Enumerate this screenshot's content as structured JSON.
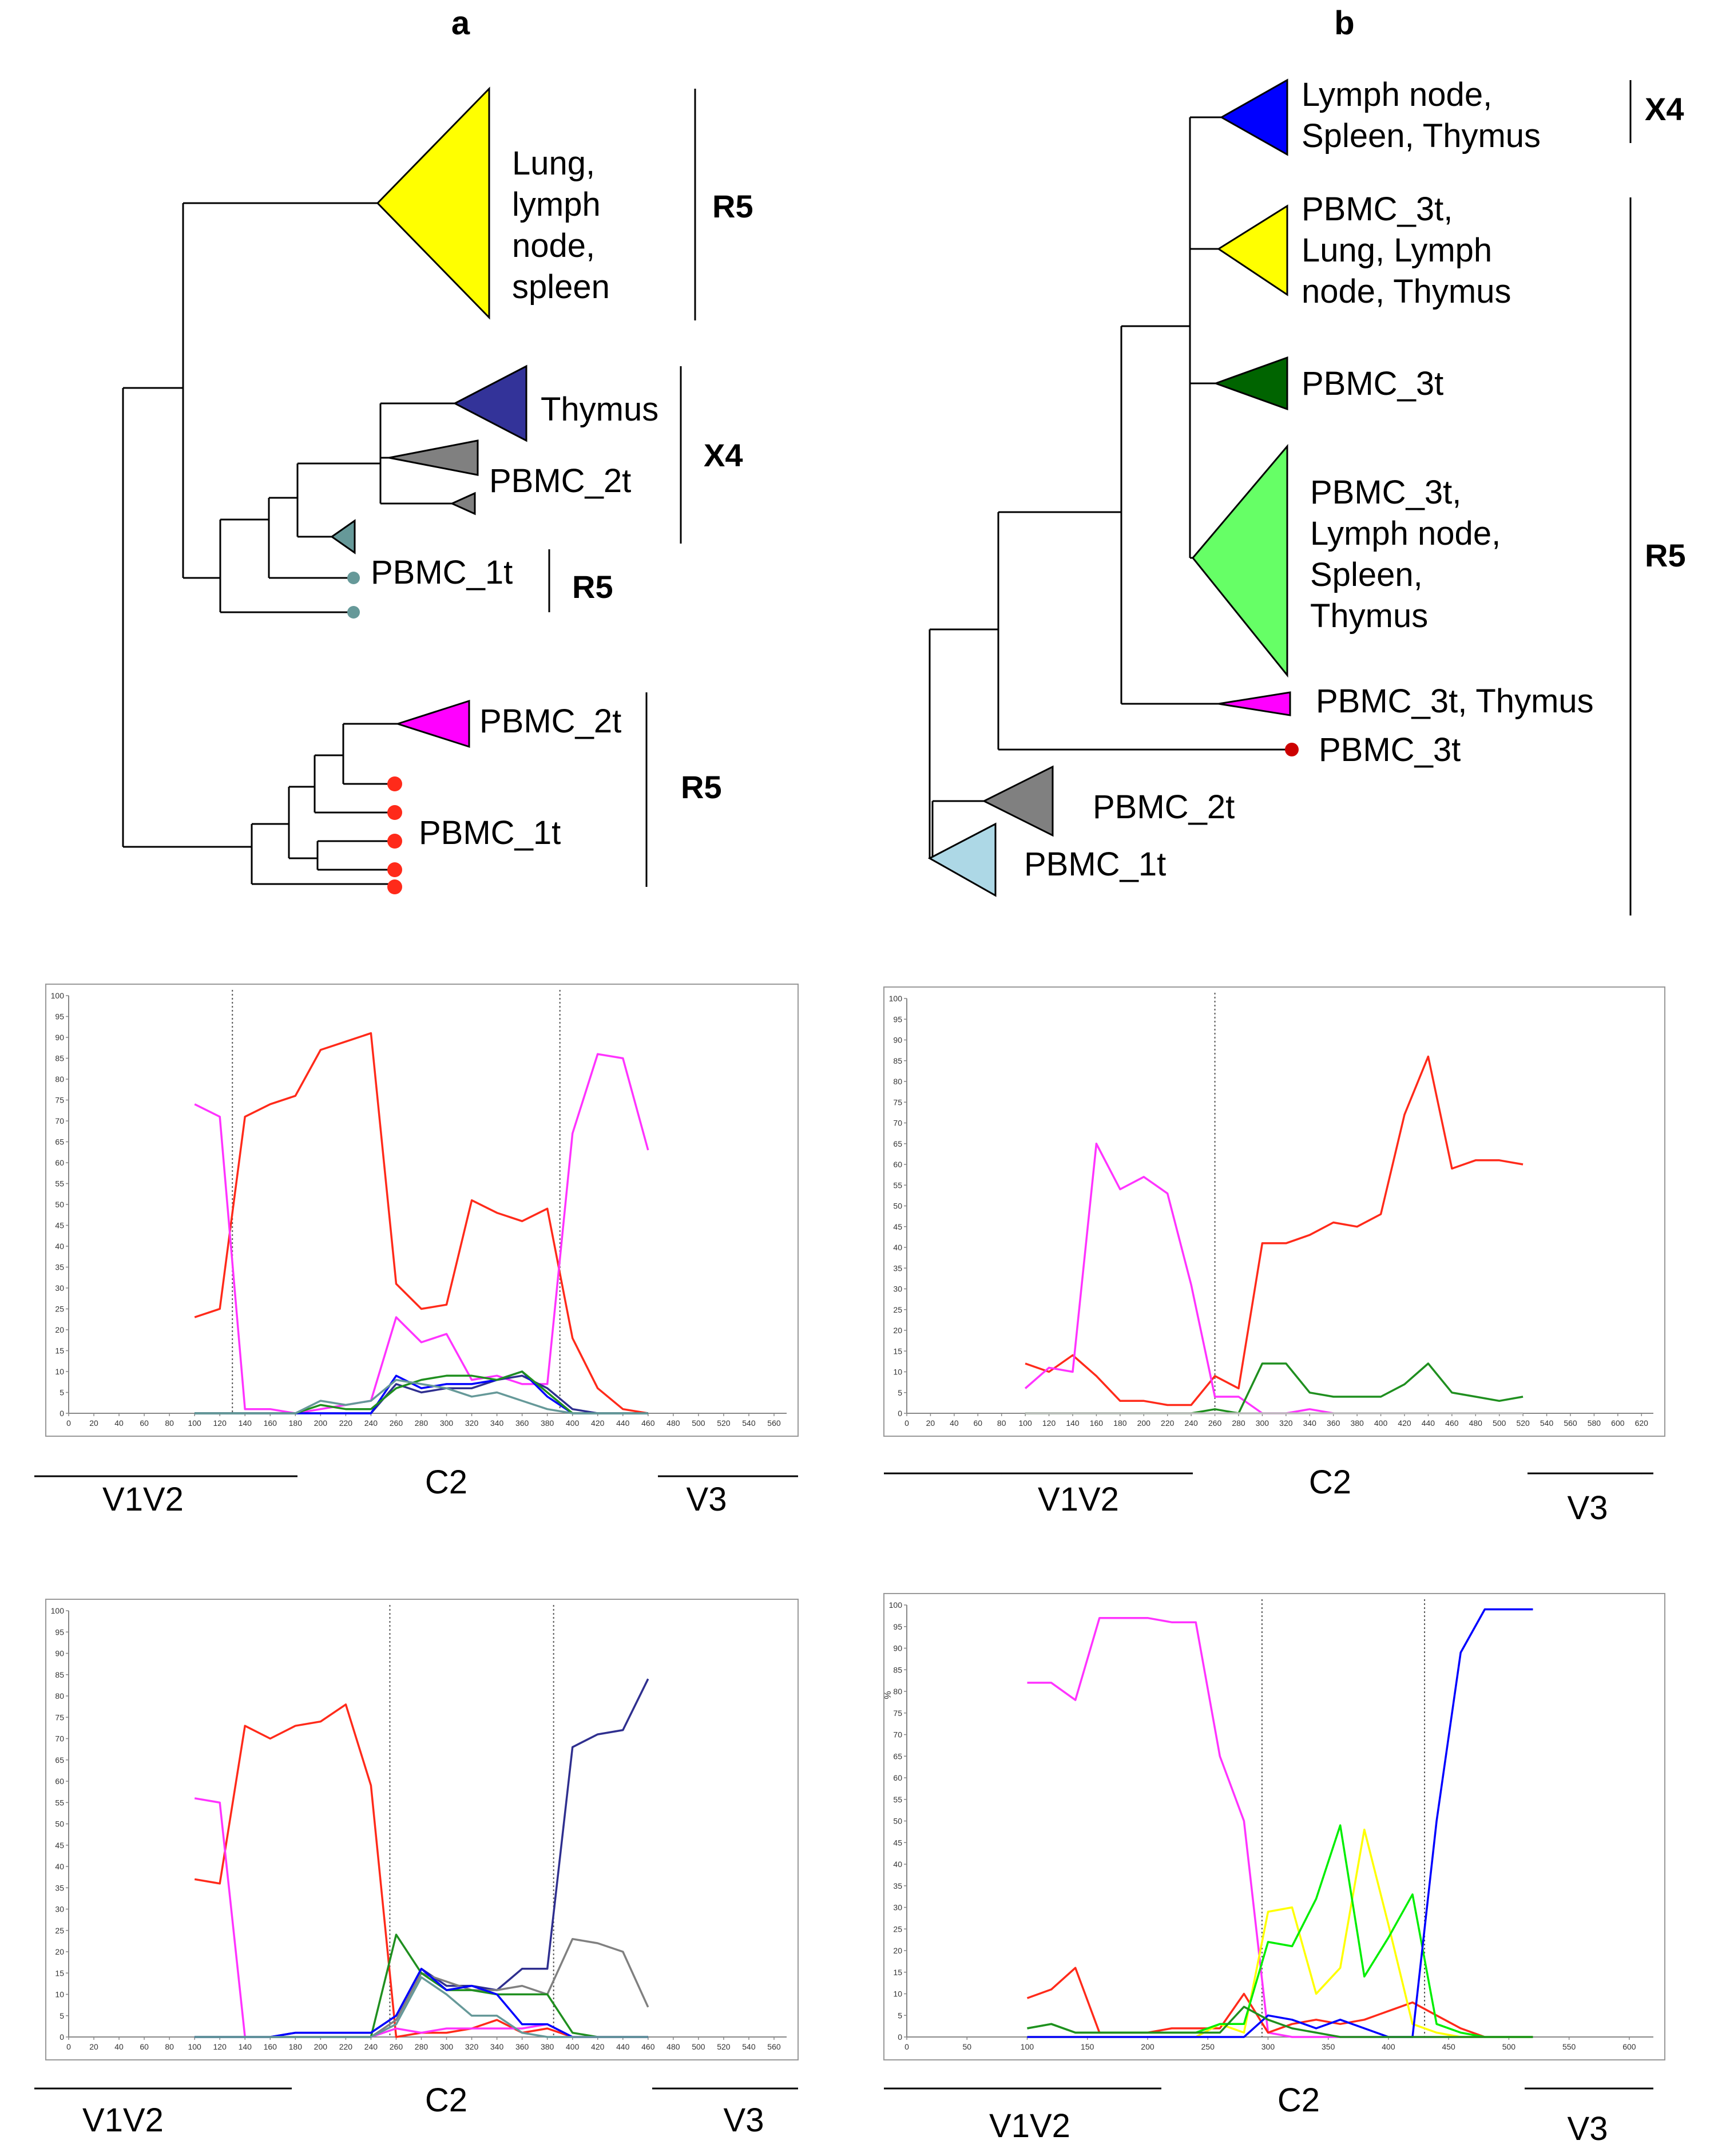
{
  "panels": {
    "a": "a",
    "b": "b"
  },
  "tree_a": {
    "clades": [
      {
        "lines": [
          "Lung,",
          "lymph",
          "node,",
          "spleen"
        ],
        "color": "#ffff00"
      },
      {
        "lines": [
          "Thymus"
        ],
        "color": "#333399"
      },
      {
        "lines": [
          "PBMC_2t"
        ],
        "color": "#808080"
      },
      {
        "lines": [
          "PBMC_1t"
        ],
        "color": "#669999"
      },
      {
        "lines": [
          "PBMC_2t"
        ],
        "color": "#ff00ff"
      },
      {
        "lines": [
          "PBMC_1t"
        ],
        "color": "#ff2a1a"
      }
    ],
    "groups": [
      "R5",
      "X4",
      "R5",
      "R5"
    ]
  },
  "tree_b": {
    "clades": [
      {
        "lines": [
          "Lymph node,",
          "Spleen, Thymus"
        ],
        "color": "#0000ff"
      },
      {
        "lines": [
          "PBMC_3t,",
          "Lung, Lymph",
          "node, Thymus"
        ],
        "color": "#ffff00"
      },
      {
        "lines": [
          "PBMC_3t"
        ],
        "color": "#006400"
      },
      {
        "lines": [
          "PBMC_3t,",
          "Lymph node,",
          "Spleen,",
          "Thymus"
        ],
        "color": "#66ff66"
      },
      {
        "lines": [
          "PBMC_3t, Thymus"
        ],
        "color": "#ff00ff"
      },
      {
        "lines": [
          "PBMC_3t"
        ],
        "color": "#cc0000"
      },
      {
        "lines": [
          "PBMC_2t"
        ],
        "color": "#808080"
      },
      {
        "lines": [
          "PBMC_1t"
        ],
        "color": "#add8e6"
      }
    ],
    "groups": [
      "X4",
      "R5"
    ]
  },
  "chart_data": [
    {
      "type": "line",
      "ylim": [
        0,
        100
      ],
      "xticks": [
        0,
        20,
        40,
        60,
        80,
        100,
        120,
        140,
        160,
        180,
        200,
        220,
        240,
        260,
        280,
        300,
        320,
        340,
        360,
        380,
        400,
        420,
        440,
        460,
        480,
        500,
        520,
        540,
        560
      ],
      "yticks": [
        0,
        5,
        10,
        15,
        20,
        25,
        30,
        35,
        40,
        45,
        50,
        55,
        60,
        65,
        70,
        75,
        80,
        85,
        90,
        95,
        100
      ],
      "vlines": [
        130,
        390
      ],
      "regions": [
        "V1V2",
        "C2",
        "V3"
      ],
      "x": [
        100,
        120,
        140,
        160,
        180,
        200,
        220,
        240,
        260,
        280,
        300,
        320,
        340,
        360,
        380,
        400,
        420,
        440,
        460
      ],
      "series": [
        {
          "color": "#ff2a1a",
          "values": [
            23,
            25,
            71,
            74,
            76,
            87,
            89,
            91,
            31,
            25,
            26,
            51,
            48,
            46,
            49,
            18,
            6,
            1,
            0
          ]
        },
        {
          "color": "#ff33ff",
          "values": [
            74,
            71,
            1,
            1,
            0,
            1,
            2,
            3,
            23,
            17,
            19,
            8,
            9,
            7,
            7,
            67,
            86,
            85,
            63
          ]
        },
        {
          "color": "#2f2f8f",
          "values": [
            0,
            0,
            0,
            0,
            0,
            0,
            0,
            0,
            7,
            5,
            6,
            6,
            8,
            9,
            6,
            1,
            0,
            0,
            0
          ]
        },
        {
          "color": "#0000ff",
          "values": [
            0,
            0,
            0,
            0,
            0,
            0,
            0,
            0,
            9,
            6,
            7,
            7,
            8,
            10,
            4,
            0,
            0,
            0,
            0
          ]
        },
        {
          "color": "#1f8f1f",
          "values": [
            0,
            0,
            0,
            0,
            0,
            2,
            1,
            1,
            6,
            8,
            9,
            9,
            8,
            10,
            5,
            0,
            0,
            0,
            0
          ]
        },
        {
          "color": "#669999",
          "values": [
            0,
            0,
            0,
            0,
            0,
            3,
            2,
            3,
            8,
            7,
            6,
            4,
            5,
            3,
            1,
            0,
            0,
            0,
            0
          ]
        }
      ]
    },
    {
      "type": "line",
      "ylim": [
        0,
        100
      ],
      "xticks": [
        0,
        20,
        40,
        60,
        80,
        100,
        120,
        140,
        160,
        180,
        200,
        220,
        240,
        260,
        280,
        300,
        320,
        340,
        360,
        380,
        400,
        420,
        440,
        460,
        480,
        500,
        520,
        540,
        560,
        580,
        600,
        620
      ],
      "yticks": [
        0,
        5,
        10,
        15,
        20,
        25,
        30,
        35,
        40,
        45,
        50,
        55,
        60,
        65,
        70,
        75,
        80,
        85,
        90,
        95,
        100
      ],
      "vlines": [
        260
      ],
      "regions": [
        "V1V2",
        "C2",
        "V3"
      ],
      "x": [
        100,
        120,
        140,
        160,
        180,
        200,
        220,
        240,
        260,
        280,
        300,
        320,
        340,
        360,
        380,
        400,
        420,
        440,
        460,
        480,
        500,
        520
      ],
      "series": [
        {
          "color": "#ff2a1a",
          "values": [
            12,
            10,
            14,
            9,
            3,
            3,
            2,
            2,
            9,
            6,
            41,
            41,
            43,
            46,
            45,
            48,
            72,
            86,
            59,
            61,
            61,
            60
          ]
        },
        {
          "color": "#ff33ff",
          "values": [
            6,
            11,
            10,
            65,
            54,
            57,
            53,
            31,
            4,
            4,
            0,
            0,
            1,
            0,
            null,
            null,
            null,
            null,
            null,
            null,
            null,
            null
          ]
        },
        {
          "color": "#1f8f1f",
          "values": [
            0,
            0,
            0,
            0,
            0,
            0,
            0,
            0,
            1,
            0,
            12,
            12,
            5,
            4,
            4,
            4,
            7,
            12,
            5,
            4,
            3,
            4
          ]
        },
        {
          "color": "#bbbbbb",
          "values": [
            0,
            0,
            0,
            0,
            0,
            0,
            0,
            0,
            0,
            0,
            0,
            0,
            0,
            0,
            0,
            0,
            0,
            0,
            0,
            0,
            0,
            0
          ]
        }
      ]
    },
    {
      "type": "line",
      "ylim": [
        0,
        100
      ],
      "xticks": [
        0,
        20,
        40,
        60,
        80,
        100,
        120,
        140,
        160,
        180,
        200,
        220,
        240,
        260,
        280,
        300,
        320,
        340,
        360,
        380,
        400,
        420,
        440,
        460,
        480,
        500,
        520,
        540,
        560
      ],
      "yticks": [
        0,
        5,
        10,
        15,
        20,
        25,
        30,
        35,
        40,
        45,
        50,
        55,
        60,
        65,
        70,
        75,
        80,
        85,
        90,
        95,
        100
      ],
      "vlines": [
        255,
        385
      ],
      "regions": [
        "V1V2",
        "C2",
        "V3"
      ],
      "x": [
        100,
        120,
        140,
        160,
        180,
        200,
        220,
        240,
        260,
        280,
        300,
        320,
        340,
        360,
        380,
        400,
        420,
        440,
        460
      ],
      "series": [
        {
          "color": "#ff2a1a",
          "values": [
            37,
            36,
            73,
            70,
            73,
            74,
            78,
            59,
            0,
            1,
            1,
            2,
            4,
            1,
            2,
            0,
            0,
            0,
            0
          ]
        },
        {
          "color": "#ff33ff",
          "values": [
            56,
            55,
            0,
            0,
            0,
            0,
            0,
            0,
            2,
            1,
            2,
            2,
            2,
            2,
            3,
            0,
            0,
            0,
            0
          ]
        },
        {
          "color": "#2f2f8f",
          "values": [
            0,
            0,
            0,
            0,
            1,
            1,
            1,
            1,
            5,
            16,
            12,
            12,
            11,
            16,
            16,
            68,
            71,
            72,
            84
          ]
        },
        {
          "color": "#808080",
          "values": [
            0,
            0,
            0,
            0,
            0,
            0,
            0,
            0,
            4,
            15,
            13,
            11,
            11,
            12,
            10,
            23,
            22,
            20,
            7
          ]
        },
        {
          "color": "#1f8f1f",
          "values": [
            0,
            0,
            0,
            0,
            0,
            0,
            0,
            0,
            24,
            15,
            11,
            11,
            10,
            10,
            10,
            1,
            0,
            0,
            0
          ]
        },
        {
          "color": "#0000ff",
          "values": [
            0,
            0,
            0,
            0,
            1,
            1,
            1,
            1,
            5,
            16,
            11,
            12,
            10,
            3,
            3,
            0,
            0,
            0,
            0
          ]
        },
        {
          "color": "#669999",
          "values": [
            0,
            0,
            0,
            0,
            0,
            0,
            0,
            0,
            3,
            14,
            10,
            5,
            5,
            1,
            0,
            0,
            0,
            0,
            0
          ]
        }
      ]
    },
    {
      "type": "line",
      "ylabel": "%",
      "ylim": [
        0,
        100
      ],
      "xticks": [
        0,
        50,
        100,
        150,
        200,
        250,
        300,
        350,
        400,
        450,
        500,
        550,
        600
      ],
      "yticks": [
        0,
        5,
        10,
        15,
        20,
        25,
        30,
        35,
        40,
        45,
        50,
        55,
        60,
        65,
        70,
        75,
        80,
        85,
        90,
        95,
        100
      ],
      "vlines": [
        295,
        430
      ],
      "regions": [
        "V1V2",
        "C2",
        "V3"
      ],
      "x": [
        100,
        120,
        140,
        160,
        180,
        200,
        220,
        240,
        260,
        280,
        300,
        320,
        340,
        360,
        380,
        400,
        420,
        440,
        460,
        480,
        500,
        520
      ],
      "series": [
        {
          "color": "#ff33ff",
          "values": [
            82,
            82,
            78,
            97,
            97,
            97,
            96,
            96,
            65,
            50,
            1,
            0,
            0,
            0,
            0,
            0,
            0,
            0,
            0,
            0,
            null,
            null
          ]
        },
        {
          "color": "#ff2a1a",
          "values": [
            9,
            11,
            16,
            1,
            1,
            1,
            2,
            2,
            2,
            10,
            1,
            3,
            4,
            3,
            4,
            6,
            8,
            5,
            2,
            0,
            null,
            null
          ]
        },
        {
          "color": "#ffff00",
          "values": [
            0,
            0,
            0,
            0,
            0,
            0,
            0,
            0,
            3,
            1,
            29,
            30,
            10,
            16,
            48,
            26,
            3,
            1,
            0,
            0,
            0,
            0
          ]
        },
        {
          "color": "#00ee00",
          "values": [
            2,
            3,
            1,
            1,
            1,
            1,
            1,
            1,
            3,
            3,
            22,
            21,
            32,
            49,
            14,
            23,
            33,
            3,
            1,
            0,
            0,
            0
          ]
        },
        {
          "color": "#0000ff",
          "values": [
            0,
            0,
            0,
            0,
            0,
            0,
            0,
            0,
            0,
            0,
            5,
            4,
            2,
            4,
            2,
            0,
            0,
            50,
            89,
            99,
            99,
            99
          ]
        },
        {
          "color": "#1f8f1f",
          "values": [
            2,
            3,
            1,
            1,
            1,
            1,
            1,
            1,
            1,
            7,
            4,
            2,
            1,
            0,
            0,
            0,
            0,
            0,
            0,
            0,
            0,
            0
          ]
        }
      ]
    }
  ]
}
